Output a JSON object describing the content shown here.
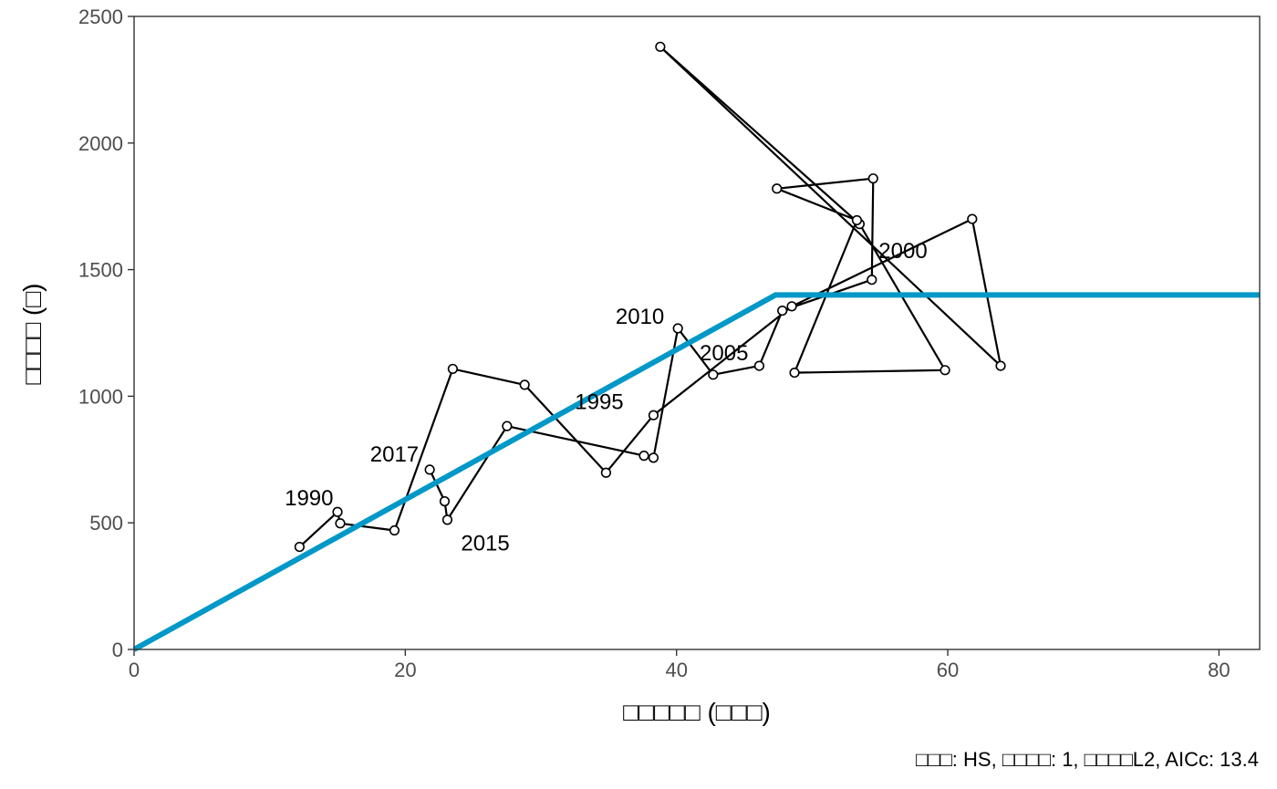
{
  "chart_data": {
    "type": "scatter",
    "title": "",
    "xlabel": "□□□□□ (□□□)",
    "ylabel": "□□□□ (□)",
    "caption": "□□□: HS, □□□□: 1, □□□□L2, AICc: 13.4",
    "xlim": [
      0,
      83
    ],
    "ylim": [
      0,
      2500
    ],
    "xticks": [
      0,
      20,
      40,
      60,
      80
    ],
    "yticks": [
      0,
      500,
      1000,
      1500,
      2000,
      2500
    ],
    "grid": false,
    "series": [
      {
        "type": "line-with-points",
        "color": "#000000",
        "points": [
          {
            "x": 12.2,
            "y": 405
          },
          {
            "x": 15.0,
            "y": 543
          },
          {
            "x": 15.2,
            "y": 498
          },
          {
            "x": 19.2,
            "y": 470
          },
          {
            "x": 23.5,
            "y": 1108
          },
          {
            "x": 28.8,
            "y": 1045
          },
          {
            "x": 34.8,
            "y": 698
          },
          {
            "x": 38.3,
            "y": 925
          },
          {
            "x": 48.5,
            "y": 1355
          },
          {
            "x": 61.8,
            "y": 1700
          },
          {
            "x": 63.9,
            "y": 1120
          },
          {
            "x": 38.8,
            "y": 2380
          },
          {
            "x": 53.5,
            "y": 1680
          },
          {
            "x": 59.8,
            "y": 1103
          },
          {
            "x": 48.7,
            "y": 1093
          },
          {
            "x": 53.3,
            "y": 1695
          },
          {
            "x": 47.4,
            "y": 1820
          },
          {
            "x": 54.5,
            "y": 1860
          },
          {
            "x": 54.4,
            "y": 1460
          },
          {
            "x": 47.8,
            "y": 1338
          },
          {
            "x": 46.1,
            "y": 1120
          },
          {
            "x": 42.7,
            "y": 1085
          },
          {
            "x": 40.1,
            "y": 1268
          },
          {
            "x": 38.3,
            "y": 757
          },
          {
            "x": 37.6,
            "y": 765
          },
          {
            "x": 27.5,
            "y": 882
          },
          {
            "x": 23.1,
            "y": 512
          },
          {
            "x": 22.9,
            "y": 585
          },
          {
            "x": 21.8,
            "y": 710
          }
        ]
      },
      {
        "type": "line",
        "color": "#0098c8",
        "points": [
          {
            "x": 0,
            "y": 0
          },
          {
            "x": 47.3,
            "y": 1400
          },
          {
            "x": 83,
            "y": 1400
          }
        ]
      }
    ],
    "annotations": [
      {
        "text": "1990",
        "x": 12.9,
        "y": 598
      },
      {
        "text": "1995",
        "x": 34.3,
        "y": 978
      },
      {
        "text": "2000",
        "x": 56.7,
        "y": 1575
      },
      {
        "text": "2005",
        "x": 43.5,
        "y": 1170
      },
      {
        "text": "2010",
        "x": 37.3,
        "y": 1315
      },
      {
        "text": "2015",
        "x": 25.9,
        "y": 420
      },
      {
        "text": "2017",
        "x": 19.2,
        "y": 770
      }
    ]
  }
}
